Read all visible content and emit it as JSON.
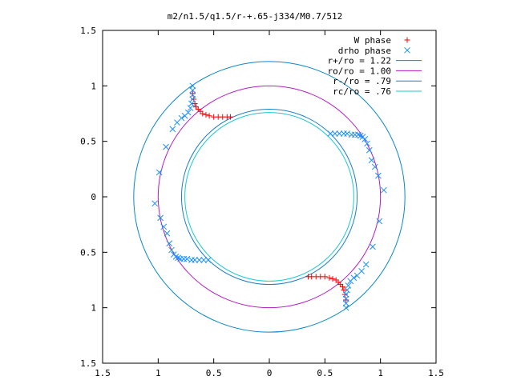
{
  "chart_data": {
    "type": "scatter",
    "title": "m2/n1.5/q1.5/r-+.65-j334/M0.7/512",
    "xlabel": "",
    "ylabel": "",
    "xlim": [
      -1.5,
      1.5
    ],
    "ylim": [
      -1.5,
      1.5
    ],
    "x_ticks": [
      -1.5,
      -1,
      -0.5,
      0,
      0.5,
      1,
      1.5
    ],
    "y_ticks": [
      -1.5,
      -1,
      -0.5,
      0,
      0.5,
      1,
      1.5
    ],
    "x_tick_labels": [
      "1.5",
      "1",
      "0.5",
      "0",
      "0.5",
      "1",
      "1.5"
    ],
    "y_tick_labels": [
      "1.5",
      "1",
      "0.5",
      "0",
      "0.5",
      "1",
      "1.5"
    ],
    "grid": false,
    "legend_position": "top-right",
    "circles": [
      {
        "name": "r+/ro = 1.22",
        "radius": 1.22,
        "color": "#0c87c9"
      },
      {
        "name": "ro/ro = 1.00",
        "radius": 1.0,
        "color": "#b41cc4"
      },
      {
        "name": "r-/ro = .79",
        "radius": 0.79,
        "color": "#1e7ec8"
      },
      {
        "name": "rc/ro = .76",
        "radius": 0.76,
        "color": "#1cc8d2"
      }
    ],
    "scatter_series": [
      {
        "name": "W phase",
        "marker": "plus",
        "color": "#ff0000",
        "points": [
          [
            -0.69,
            0.93
          ],
          [
            -0.68,
            0.88
          ],
          [
            -0.67,
            0.84
          ],
          [
            -0.66,
            0.81
          ],
          [
            -0.64,
            0.79
          ],
          [
            -0.62,
            0.77
          ],
          [
            -0.6,
            0.75
          ],
          [
            -0.57,
            0.74
          ],
          [
            -0.54,
            0.73
          ],
          [
            -0.5,
            0.72
          ],
          [
            -0.46,
            0.72
          ],
          [
            -0.42,
            0.72
          ],
          [
            -0.38,
            0.72
          ],
          [
            -0.35,
            0.72
          ],
          [
            0.69,
            -0.93
          ],
          [
            0.68,
            -0.88
          ],
          [
            0.67,
            -0.84
          ],
          [
            0.66,
            -0.81
          ],
          [
            0.64,
            -0.79
          ],
          [
            0.62,
            -0.77
          ],
          [
            0.6,
            -0.75
          ],
          [
            0.57,
            -0.74
          ],
          [
            0.54,
            -0.73
          ],
          [
            0.5,
            -0.72
          ],
          [
            0.46,
            -0.72
          ],
          [
            0.42,
            -0.72
          ],
          [
            0.38,
            -0.72
          ],
          [
            0.35,
            -0.72
          ]
        ]
      },
      {
        "name": "drho phase",
        "marker": "cross",
        "color": "#1e90ff",
        "points": [
          [
            0.7,
            0.57
          ],
          [
            0.67,
            0.57
          ],
          [
            0.63,
            0.57
          ],
          [
            0.59,
            0.57
          ],
          [
            0.55,
            0.57
          ],
          [
            0.74,
            0.56
          ],
          [
            0.77,
            0.56
          ],
          [
            0.8,
            0.56
          ],
          [
            0.82,
            0.55
          ],
          [
            0.84,
            0.54
          ],
          [
            0.86,
            0.52
          ],
          [
            0.88,
            0.48
          ],
          [
            0.9,
            0.42
          ],
          [
            0.92,
            0.33
          ],
          [
            0.95,
            0.27
          ],
          [
            0.98,
            0.19
          ],
          [
            1.03,
            0.06
          ],
          [
            0.99,
            -0.22
          ],
          [
            0.93,
            -0.45
          ],
          [
            0.87,
            -0.61
          ],
          [
            0.83,
            -0.67
          ],
          [
            0.79,
            -0.71
          ],
          [
            0.76,
            -0.73
          ],
          [
            0.73,
            -0.76
          ],
          [
            0.71,
            -0.8
          ],
          [
            0.7,
            -0.84
          ],
          [
            0.69,
            -0.88
          ],
          [
            0.69,
            -0.92
          ],
          [
            0.69,
            -0.96
          ],
          [
            0.69,
            -1.0
          ],
          [
            -0.69,
            1.0
          ],
          [
            -0.69,
            0.96
          ],
          [
            -0.69,
            0.92
          ],
          [
            -0.69,
            0.88
          ],
          [
            -0.7,
            0.84
          ],
          [
            -0.71,
            0.8
          ],
          [
            -0.73,
            0.76
          ],
          [
            -0.76,
            0.73
          ],
          [
            -0.79,
            0.71
          ],
          [
            -0.83,
            0.67
          ],
          [
            -0.87,
            0.61
          ],
          [
            -0.93,
            0.45
          ],
          [
            -0.99,
            0.22
          ],
          [
            -1.03,
            -0.06
          ],
          [
            -0.98,
            -0.19
          ],
          [
            -0.95,
            -0.27
          ],
          [
            -0.92,
            -0.33
          ],
          [
            -0.9,
            -0.42
          ],
          [
            -0.88,
            -0.48
          ],
          [
            -0.86,
            -0.52
          ],
          [
            -0.84,
            -0.54
          ],
          [
            -0.82,
            -0.55
          ],
          [
            -0.8,
            -0.56
          ],
          [
            -0.77,
            -0.56
          ],
          [
            -0.74,
            -0.56
          ],
          [
            -0.7,
            -0.57
          ],
          [
            -0.67,
            -0.57
          ],
          [
            -0.63,
            -0.57
          ],
          [
            -0.59,
            -0.57
          ],
          [
            -0.55,
            -0.57
          ]
        ]
      }
    ],
    "legend": [
      {
        "label": "W phase",
        "symbol": "plus",
        "color": "#ff0000"
      },
      {
        "label": "drho phase",
        "symbol": "cross",
        "color": "#1e90ff"
      },
      {
        "label": "r+/ro = 1.22",
        "symbol": "line",
        "color": "#0c87c9"
      },
      {
        "label": "ro/ro = 1.00",
        "symbol": "line",
        "color": "#b41cc4"
      },
      {
        "label": "r-/ro = .79",
        "symbol": "line",
        "color": "#1e7ec8"
      },
      {
        "label": "rc/ro = .76",
        "symbol": "line",
        "color": "#1cc8d2"
      }
    ]
  }
}
